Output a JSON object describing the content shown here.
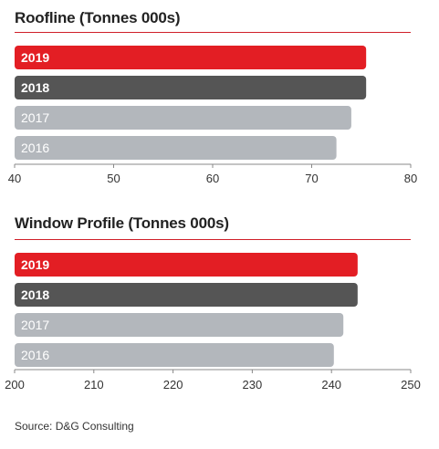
{
  "chart_data": [
    {
      "type": "bar",
      "orientation": "horizontal",
      "title": "Roofline (Tonnes 000s)",
      "categories": [
        "2019",
        "2018",
        "2017",
        "2016"
      ],
      "values": [
        75.5,
        75.5,
        74,
        72.5
      ],
      "colors": [
        "#e31e24",
        "#555555",
        "#b3b7bc",
        "#b3b7bc"
      ],
      "xlim": [
        40,
        80
      ],
      "ticks": [
        "40",
        "50",
        "60",
        "70",
        "80"
      ],
      "grid": false,
      "legend": "none"
    },
    {
      "type": "bar",
      "orientation": "horizontal",
      "title": "Window Profile (Tonnes 000s)",
      "categories": [
        "2019",
        "2018",
        "2017",
        "2016"
      ],
      "values": [
        243.3,
        243.3,
        241.5,
        240.3
      ],
      "colors": [
        "#e31e24",
        "#555555",
        "#b3b7bc",
        "#b3b7bc"
      ],
      "xlim": [
        200,
        250
      ],
      "ticks": [
        "200",
        "210",
        "220",
        "230",
        "240",
        "250"
      ],
      "grid": false,
      "legend": "none"
    }
  ],
  "source": "Source: D&G Consulting"
}
